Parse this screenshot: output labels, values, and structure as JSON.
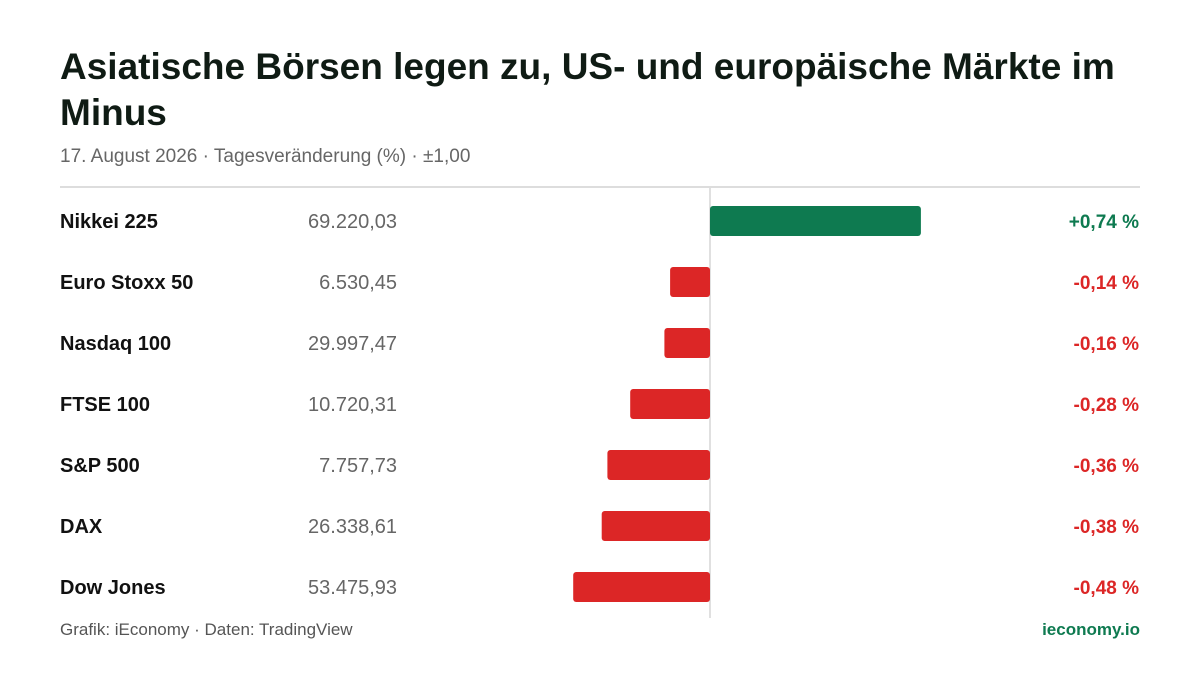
{
  "title": "Asiatische Börsen legen zu, US- und europäische Märkte im Minus",
  "subtitle": "17.  August 2026 · Tagesveränderung (%) · ±1,00",
  "footer": {
    "source": "Grafik: iEconomy · Daten: TradingView",
    "brand": "ieconomy.io"
  },
  "colors": {
    "positive": "#0e7a50",
    "negative": "#dc2626",
    "axis": "#d6d6d6"
  },
  "chart_data": {
    "type": "bar",
    "orientation": "horizontal",
    "xlim": [
      -1,
      1
    ],
    "rows": [
      {
        "name": "Nikkei 225",
        "level": "69.220,03",
        "value": 0.74,
        "label": "+0,74 %"
      },
      {
        "name": "Euro Stoxx 50",
        "level": "6.530,45",
        "value": -0.14,
        "label": "-0,14 %"
      },
      {
        "name": "Nasdaq 100",
        "level": "29.997,47",
        "value": -0.16,
        "label": "-0,16 %"
      },
      {
        "name": "FTSE 100",
        "level": "10.720,31",
        "value": -0.28,
        "label": "-0,28 %"
      },
      {
        "name": "S&P 500",
        "level": "7.757,73",
        "value": -0.36,
        "label": "-0,36 %"
      },
      {
        "name": "DAX",
        "level": "26.338,61",
        "value": -0.38,
        "label": "-0,38 %"
      },
      {
        "name": "Dow Jones",
        "level": "53.475,93",
        "value": -0.48,
        "label": "-0,48 %"
      }
    ]
  }
}
